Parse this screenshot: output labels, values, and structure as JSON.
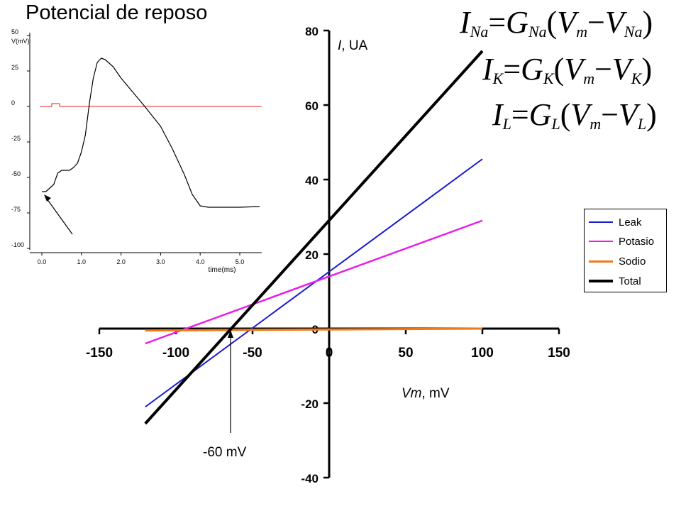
{
  "title": "Potencial de reposo",
  "equations": [
    {
      "lhs": "I",
      "lhs_sub": "Na",
      "g": "G",
      "g_sub": "Na",
      "v": "V",
      "v_sub": "m",
      "e": "V",
      "e_sub": "Na"
    },
    {
      "lhs": "I",
      "lhs_sub": "K",
      "g": "G",
      "g_sub": "K",
      "v": "V",
      "v_sub": "m",
      "e": "V",
      "e_sub": "K"
    },
    {
      "lhs": "I",
      "lhs_sub": "L",
      "g": "G",
      "g_sub": "L",
      "v": "V",
      "v_sub": "m",
      "e": "V",
      "e_sub": "L"
    }
  ],
  "annotation": "-60 mV",
  "legend_entries": [
    "Leak",
    "Potasio",
    "Sodio",
    "Total"
  ],
  "colors": {
    "leak": "#1a1ad0",
    "potasio": "#e81ee8",
    "sodio": "#f07a1a",
    "total": "#000000",
    "inset_trace": "#000000",
    "inset_stim": "#e02020"
  },
  "chart_data": [
    {
      "type": "line",
      "xlabel": "Vm, mV",
      "ylabel": "I, UA",
      "xlim": [
        -150,
        150
      ],
      "ylim": [
        -40,
        80
      ],
      "xticks": [
        -150,
        -100,
        -50,
        0,
        50,
        100,
        150
      ],
      "yticks": [
        -40,
        -20,
        0,
        20,
        40,
        60,
        80
      ],
      "grid": false,
      "legend_position": "right",
      "series": [
        {
          "name": "Leak",
          "color": "#1a1ad0",
          "x": [
            -120,
            100
          ],
          "y": [
            -21,
            45.5
          ]
        },
        {
          "name": "Potasio",
          "color": "#e81ee8",
          "x": [
            -120,
            100
          ],
          "y": [
            -4,
            29
          ]
        },
        {
          "name": "Sodio",
          "color": "#f07a1a",
          "x": [
            -120,
            100
          ],
          "y": [
            -0.5,
            0
          ]
        },
        {
          "name": "Total",
          "color": "#000000",
          "x": [
            -120,
            100
          ],
          "y": [
            -25.5,
            74.5
          ]
        }
      ]
    },
    {
      "type": "line",
      "xlabel": "time(ms)",
      "ylabel": "V(mV)",
      "xlim": [
        0,
        5.5
      ],
      "ylim": [
        -100,
        50
      ],
      "xticks": [
        "0.0",
        "1.0",
        "2.0",
        "3.0",
        "4.0",
        "5.0"
      ],
      "yticks": [
        "50",
        "25",
        "0",
        "-25",
        "-50",
        "-75",
        "-100"
      ],
      "grid": false,
      "series": [
        {
          "color": "#000000",
          "x": [
            0,
            0.1,
            0.3,
            0.4,
            0.5,
            0.7,
            0.8,
            0.9,
            1.0,
            1.1,
            1.2,
            1.3,
            1.4,
            1.5,
            1.6,
            1.8,
            2.0,
            2.3,
            2.6,
            3.0,
            3.3,
            3.6,
            3.8,
            4.0,
            4.2,
            4.5,
            5.0,
            5.5
          ],
          "y": [
            -60,
            -60,
            -55,
            -47,
            -45,
            -45,
            -43,
            -40,
            -32,
            -20,
            2,
            20,
            31,
            34,
            33,
            28,
            20,
            10,
            0,
            -14,
            -30,
            -48,
            -62,
            -70,
            -71,
            -71,
            -71,
            -70.5
          ]
        },
        {
          "color": "#e02020",
          "x": [
            -0.05,
            0.25,
            0.25,
            0.45,
            0.45,
            5.55
          ],
          "y": [
            0,
            0,
            2,
            2,
            0,
            0
          ]
        }
      ]
    }
  ]
}
